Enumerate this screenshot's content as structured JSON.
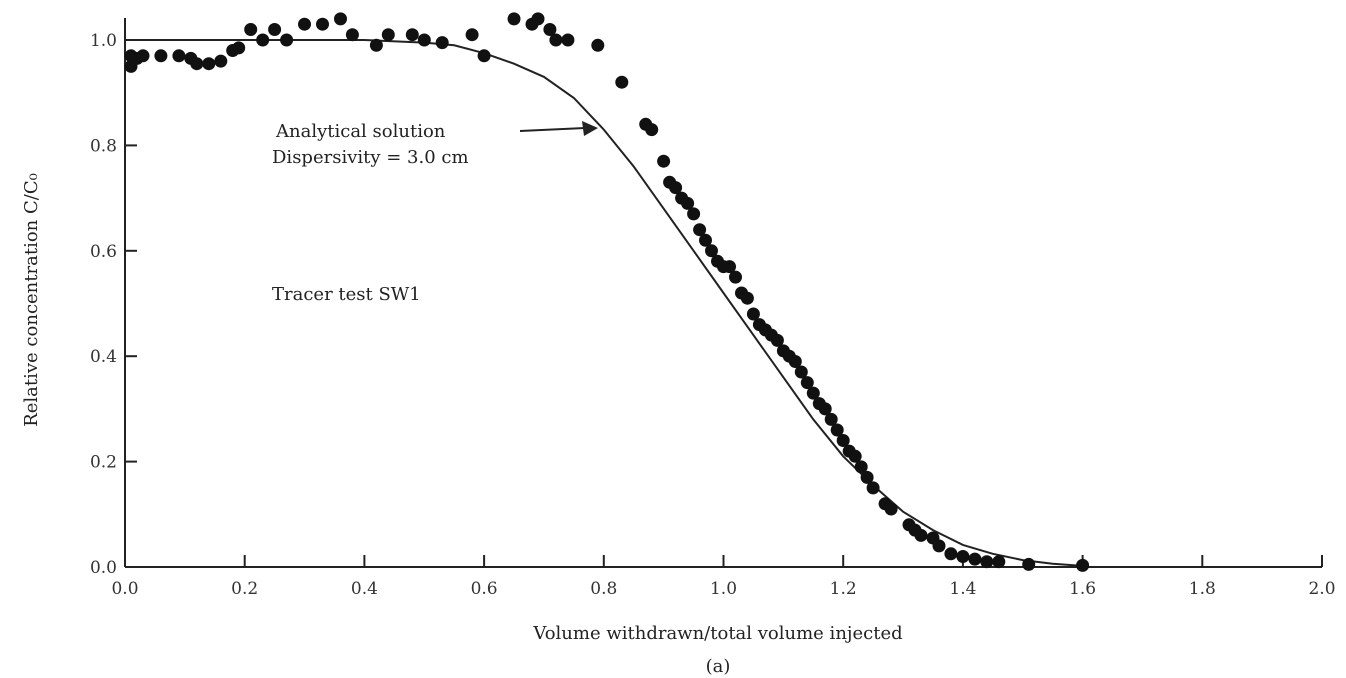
{
  "chart_data": {
    "type": "scatter",
    "xlabel": "Volume withdrawn/total volume injected",
    "ylabel": "Relative concentration C/C₀",
    "caption": "(a)",
    "xlim": [
      0.0,
      2.0
    ],
    "ylim": [
      0.0,
      1.05
    ],
    "x_ticks": [
      0.0,
      0.2,
      0.4,
      0.6,
      0.8,
      1.0,
      1.2,
      1.4,
      1.6,
      1.8,
      2.0
    ],
    "x_tick_labels": [
      "0.0",
      "0.2",
      "0.4",
      "0.6",
      "0.8",
      "1.0",
      "1.2",
      "1.4",
      "1.6",
      "1.8",
      "2.0"
    ],
    "y_ticks": [
      0.0,
      0.2,
      0.4,
      0.6,
      0.8,
      1.0
    ],
    "y_tick_labels": [
      "0.0",
      "0.2",
      "0.4",
      "0.6",
      "0.8",
      "1.0"
    ],
    "grid": false,
    "annotations": {
      "curve_label_line1": "Analytical solution",
      "curve_label_line2": "Dispersivity = 3.0 cm",
      "test_label": "Tracer test SW1"
    },
    "series": [
      {
        "type": "line",
        "points": [
          [
            0.0,
            1.0
          ],
          [
            0.1,
            1.0
          ],
          [
            0.2,
            1.0
          ],
          [
            0.3,
            1.0
          ],
          [
            0.4,
            1.0
          ],
          [
            0.5,
            0.995
          ],
          [
            0.55,
            0.99
          ],
          [
            0.6,
            0.975
          ],
          [
            0.65,
            0.955
          ],
          [
            0.7,
            0.93
          ],
          [
            0.75,
            0.89
          ],
          [
            0.8,
            0.83
          ],
          [
            0.85,
            0.76
          ],
          [
            0.9,
            0.68
          ],
          [
            0.95,
            0.6
          ],
          [
            1.0,
            0.52
          ],
          [
            1.05,
            0.44
          ],
          [
            1.1,
            0.36
          ],
          [
            1.15,
            0.28
          ],
          [
            1.2,
            0.21
          ],
          [
            1.25,
            0.155
          ],
          [
            1.3,
            0.105
          ],
          [
            1.35,
            0.07
          ],
          [
            1.4,
            0.042
          ],
          [
            1.45,
            0.025
          ],
          [
            1.5,
            0.013
          ],
          [
            1.55,
            0.006
          ],
          [
            1.6,
            0.002
          ]
        ]
      },
      {
        "type": "scatter",
        "points": [
          [
            0.01,
            0.95
          ],
          [
            0.01,
            0.97
          ],
          [
            0.02,
            0.965
          ],
          [
            0.03,
            0.97
          ],
          [
            0.06,
            0.97
          ],
          [
            0.09,
            0.97
          ],
          [
            0.11,
            0.965
          ],
          [
            0.12,
            0.955
          ],
          [
            0.14,
            0.955
          ],
          [
            0.16,
            0.96
          ],
          [
            0.18,
            0.98
          ],
          [
            0.19,
            0.985
          ],
          [
            0.21,
            1.02
          ],
          [
            0.23,
            1.0
          ],
          [
            0.25,
            1.02
          ],
          [
            0.27,
            1.0
          ],
          [
            0.3,
            1.03
          ],
          [
            0.33,
            1.03
          ],
          [
            0.36,
            1.04
          ],
          [
            0.38,
            1.01
          ],
          [
            0.42,
            0.99
          ],
          [
            0.44,
            1.01
          ],
          [
            0.48,
            1.01
          ],
          [
            0.5,
            1.0
          ],
          [
            0.53,
            0.995
          ],
          [
            0.58,
            1.01
          ],
          [
            0.6,
            0.97
          ],
          [
            0.65,
            1.04
          ],
          [
            0.68,
            1.03
          ],
          [
            0.69,
            1.04
          ],
          [
            0.71,
            1.02
          ],
          [
            0.72,
            1.0
          ],
          [
            0.74,
            1.0
          ],
          [
            0.79,
            0.99
          ],
          [
            0.83,
            0.92
          ],
          [
            0.87,
            0.84
          ],
          [
            0.88,
            0.83
          ],
          [
            0.9,
            0.77
          ],
          [
            0.91,
            0.73
          ],
          [
            0.92,
            0.72
          ],
          [
            0.93,
            0.7
          ],
          [
            0.94,
            0.69
          ],
          [
            0.95,
            0.67
          ],
          [
            0.96,
            0.64
          ],
          [
            0.97,
            0.62
          ],
          [
            0.98,
            0.6
          ],
          [
            0.99,
            0.58
          ],
          [
            1.0,
            0.57
          ],
          [
            1.01,
            0.57
          ],
          [
            1.02,
            0.55
          ],
          [
            1.03,
            0.52
          ],
          [
            1.04,
            0.51
          ],
          [
            1.05,
            0.48
          ],
          [
            1.06,
            0.46
          ],
          [
            1.07,
            0.45
          ],
          [
            1.08,
            0.44
          ],
          [
            1.09,
            0.43
          ],
          [
            1.1,
            0.41
          ],
          [
            1.11,
            0.4
          ],
          [
            1.12,
            0.39
          ],
          [
            1.13,
            0.37
          ],
          [
            1.14,
            0.35
          ],
          [
            1.15,
            0.33
          ],
          [
            1.16,
            0.31
          ],
          [
            1.17,
            0.3
          ],
          [
            1.18,
            0.28
          ],
          [
            1.19,
            0.26
          ],
          [
            1.2,
            0.24
          ],
          [
            1.21,
            0.22
          ],
          [
            1.22,
            0.21
          ],
          [
            1.23,
            0.19
          ],
          [
            1.24,
            0.17
          ],
          [
            1.25,
            0.15
          ],
          [
            1.27,
            0.12
          ],
          [
            1.28,
            0.11
          ],
          [
            1.31,
            0.08
          ],
          [
            1.32,
            0.07
          ],
          [
            1.33,
            0.06
          ],
          [
            1.35,
            0.055
          ],
          [
            1.36,
            0.04
          ],
          [
            1.38,
            0.025
          ],
          [
            1.4,
            0.02
          ],
          [
            1.42,
            0.015
          ],
          [
            1.44,
            0.01
          ],
          [
            1.46,
            0.01
          ],
          [
            1.51,
            0.005
          ],
          [
            1.6,
            0.003
          ]
        ]
      }
    ]
  }
}
